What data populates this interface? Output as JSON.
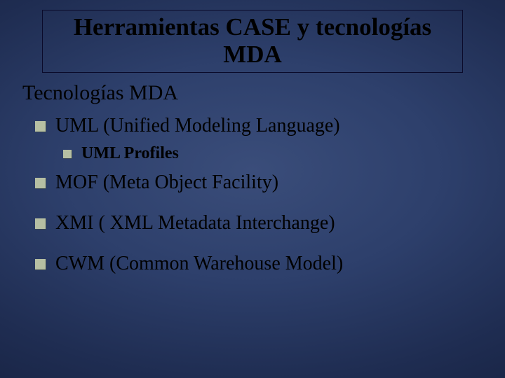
{
  "colors": {
    "bullet_fill": "#b6bfa3",
    "bullet_shadow": "#4a523d",
    "title_border": "#0a0a2a",
    "text": "#000000",
    "bg_center": "#3a4d7a",
    "bg_edge": "#131d3a"
  },
  "typography": {
    "family": "Times New Roman",
    "title_fontsize": 35,
    "subheading_fontsize": 30,
    "l1_fontsize": 28,
    "l2_fontsize": 24
  },
  "title": "Herramientas CASE y tecnologías MDA",
  "subheading": "Tecnologías MDA",
  "items": [
    {
      "label": "UML (Unified Modeling Language)",
      "children": [
        {
          "label": "UML Profiles"
        }
      ]
    },
    {
      "label": "MOF (Meta Object Facility)"
    },
    {
      "label": "XMI ( XML Metadata Interchange)"
    },
    {
      "label": "CWM (Common Warehouse Model)"
    }
  ]
}
